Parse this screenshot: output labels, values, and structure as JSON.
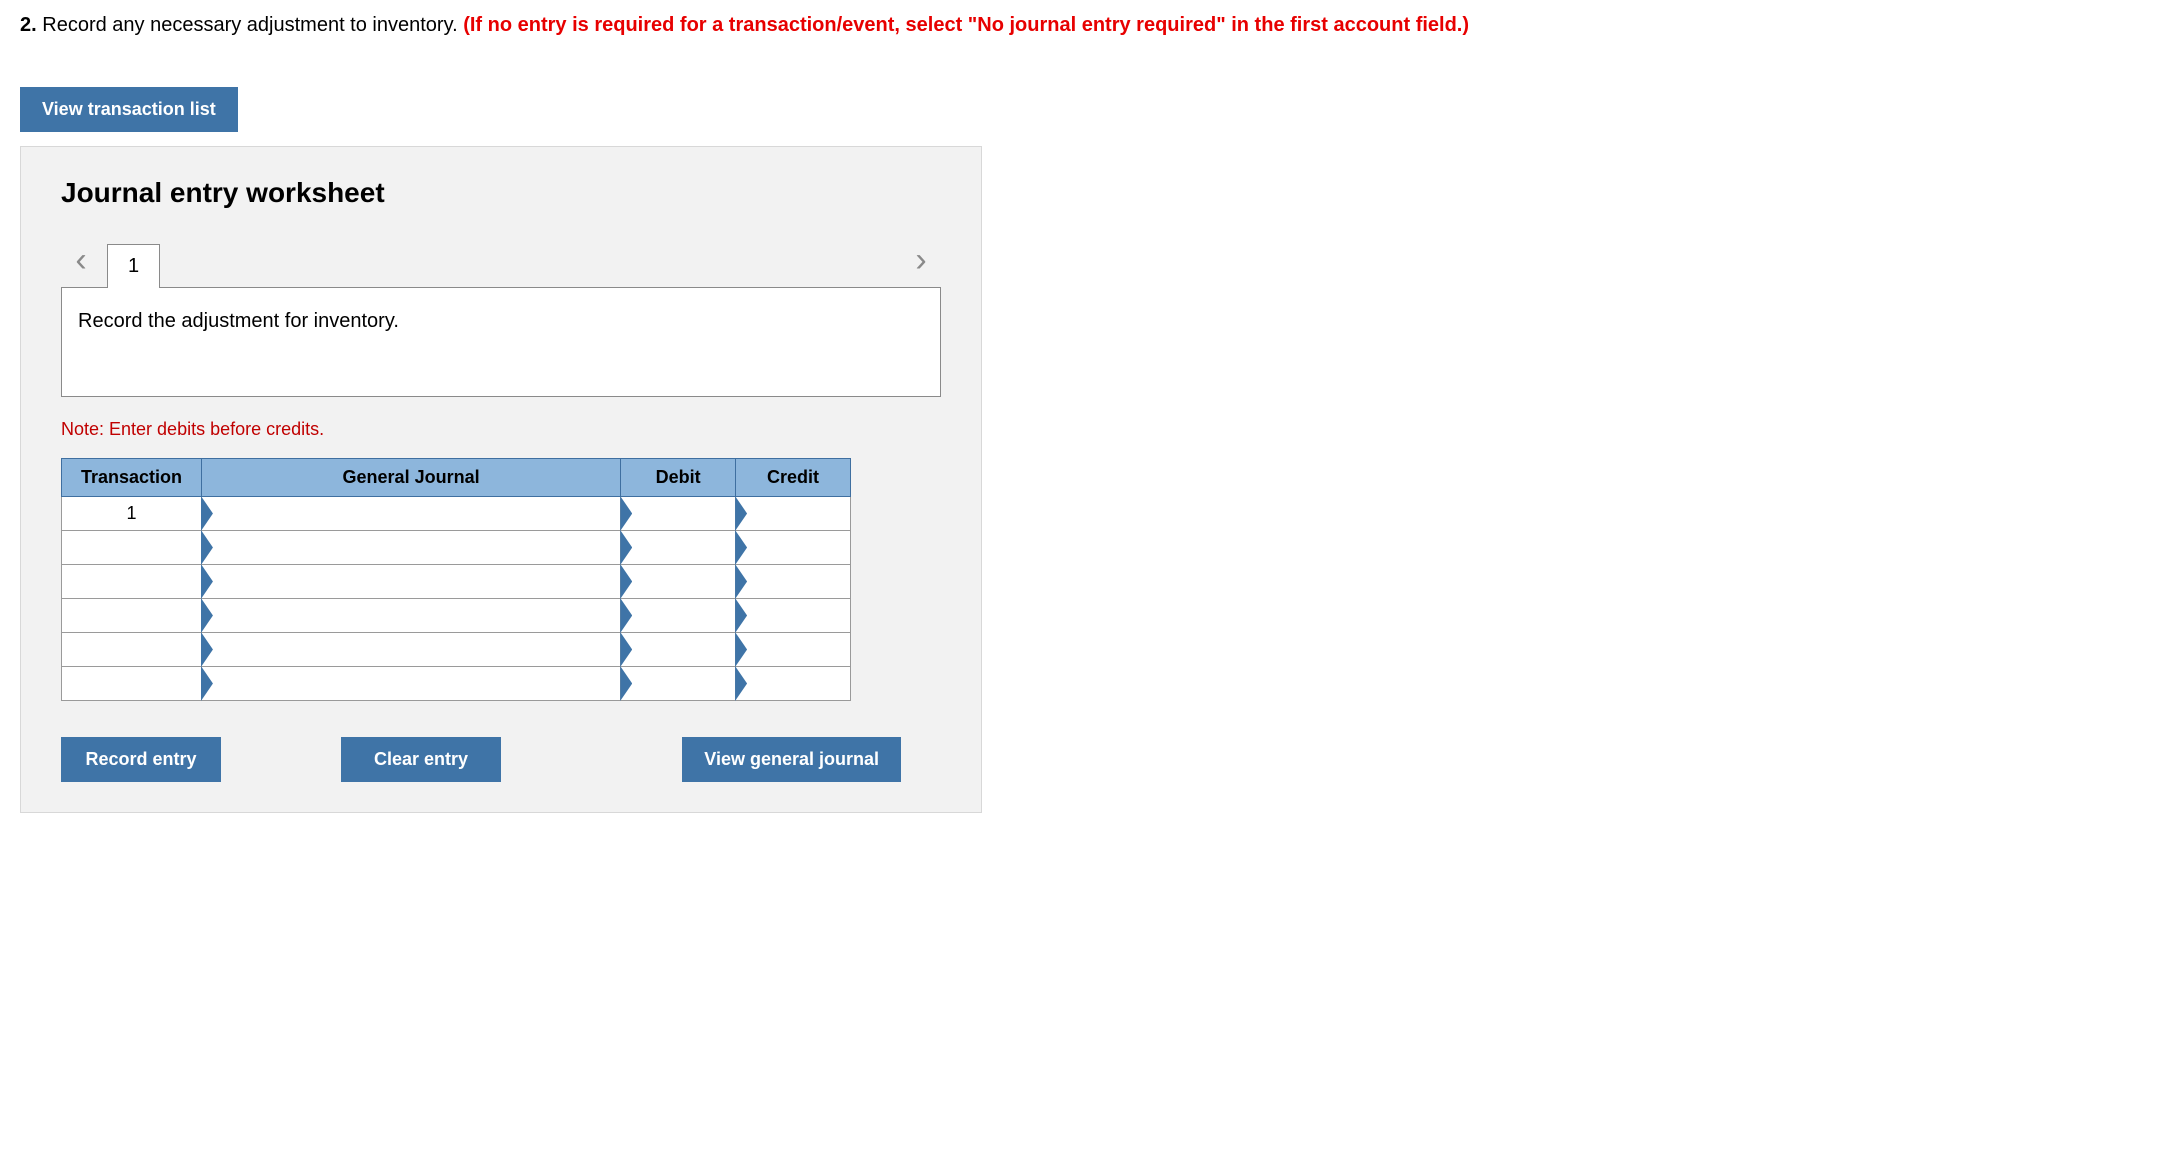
{
  "question": {
    "number": "2.",
    "text": "Record any necessary adjustment to inventory.",
    "instruction": "(If no entry is required for a transaction/event, select \"No journal entry required\" in the first account field.)"
  },
  "buttons": {
    "view_transaction_list": "View transaction list",
    "record_entry": "Record entry",
    "clear_entry": "Clear entry",
    "view_general_journal": "View general journal"
  },
  "worksheet": {
    "title": "Journal entry worksheet",
    "tab_label": "1",
    "description": "Record the adjustment for inventory.",
    "note": "Note: Enter debits before credits.",
    "columns": {
      "transaction": "Transaction",
      "general_journal": "General Journal",
      "debit": "Debit",
      "credit": "Credit"
    },
    "first_transaction_id": "1",
    "row_count": 6
  },
  "colors": {
    "button_bg": "#3f74a7",
    "header_bg": "#8db6dc",
    "panel_bg": "#f2f2f2",
    "instr_red": "#e70000",
    "note_red": "#c00000"
  }
}
